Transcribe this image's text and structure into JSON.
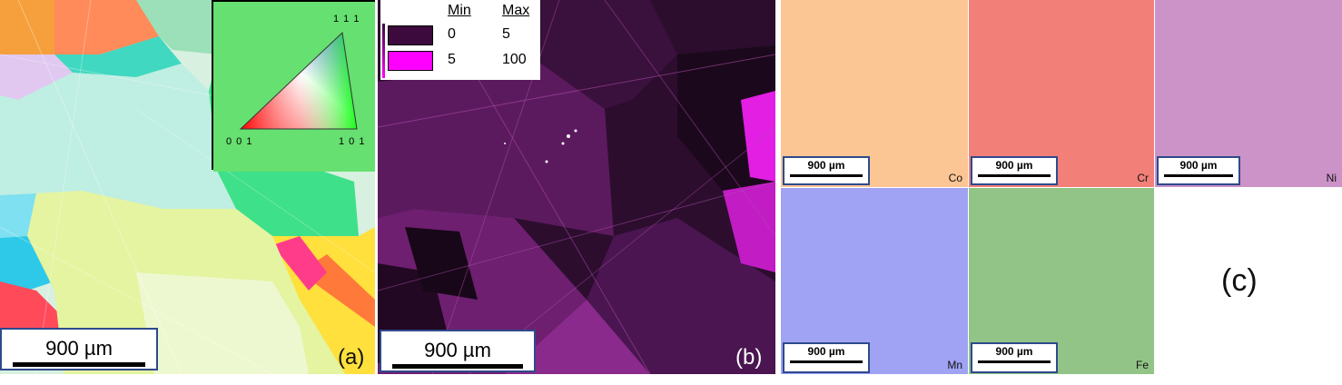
{
  "panel_a": {
    "label": "(a)",
    "scale_bar": "900 µm",
    "ipf_key": {
      "top": "1 1 1",
      "left": "0 0 1",
      "right": "1 0 1"
    }
  },
  "panel_b": {
    "label": "(b)",
    "scale_bar": "900 µm",
    "legend": {
      "min_header": "Min",
      "max_header": "Max",
      "rows": [
        {
          "min": "0",
          "max": "5",
          "color": "#3c0a3c"
        },
        {
          "min": "5",
          "max": "100",
          "color": "#ff00ff"
        }
      ]
    }
  },
  "panel_c": {
    "label": "(c)",
    "maps": [
      {
        "element": "Co",
        "scale_bar": "900 µm",
        "color": "#fcc594"
      },
      {
        "element": "Cr",
        "scale_bar": "900 µm",
        "color": "#f28079"
      },
      {
        "element": "Ni",
        "scale_bar": "900 µm",
        "color": "#cb93c8"
      },
      {
        "element": "Mn",
        "scale_bar": "900 µm",
        "color": "#a0a2f3"
      },
      {
        "element": "Fe",
        "scale_bar": "900 µm",
        "color": "#92c487"
      }
    ]
  }
}
